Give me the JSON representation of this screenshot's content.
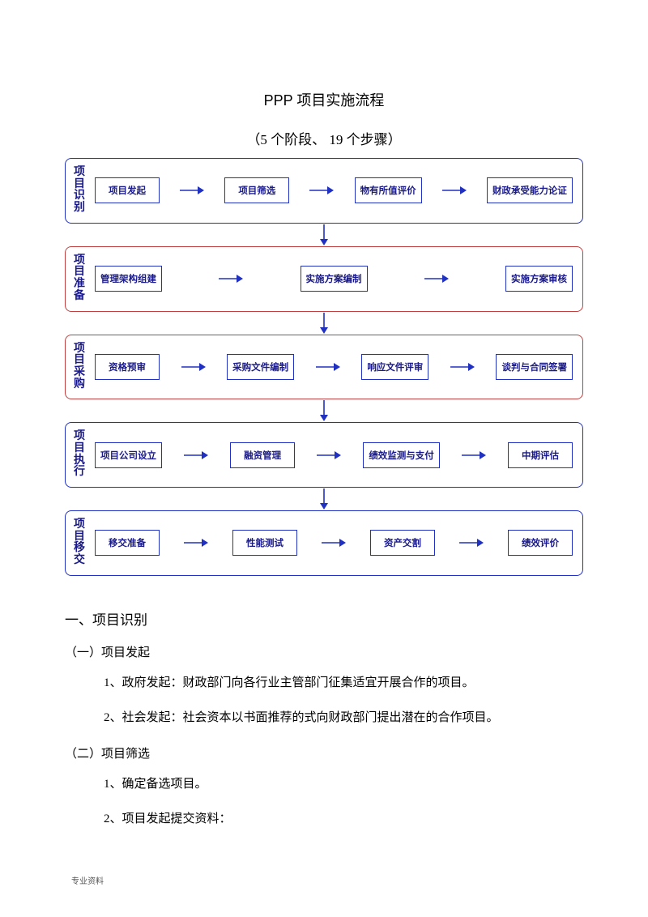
{
  "title": "PPP 项目实施流程",
  "subtitle": "（5 个阶段、 19 个步骤）",
  "diagram": {
    "arrow_color": "#2030c0",
    "box_border_color": "#2030c0",
    "box_text_color": "#1a1a8a",
    "stages": [
      {
        "label": "项目识别",
        "border_color": "#2030c0",
        "steps": [
          "项目发起",
          "项目筛选",
          "物有所值评价",
          "财政承受能力论证"
        ]
      },
      {
        "label": "项目准备",
        "border_color": "#c04040",
        "steps": [
          "管理架构组建",
          "实施方案编制",
          "实施方案审核"
        ]
      },
      {
        "label": "项目采购",
        "border_color": "#c04040",
        "steps": [
          "资格预审",
          "采购文件编制",
          "响应文件评审",
          "谈判与合同签署"
        ]
      },
      {
        "label": "项目执行",
        "border_color": "#2030c0",
        "steps": [
          "项目公司设立",
          "融资管理",
          "绩效监测与支付",
          "中期评估"
        ]
      },
      {
        "label": "项目移交",
        "border_color": "#2030c0",
        "steps": [
          "移交准备",
          "性能测试",
          "资产交割",
          "绩效评价"
        ]
      }
    ]
  },
  "body": {
    "section_heading": "一、项目识别",
    "sub1_heading": "（一）项目发起",
    "sub1_p1": "1、政府发起：财政部门向各行业主管部门征集适宜开展合作的项目。",
    "sub1_p2": "2、社会发起：社会资本以书面推荐的式向财政部门提出潜在的合作项目。",
    "sub2_heading": "（二）项目筛选",
    "sub2_p1": "1、确定备选项目。",
    "sub2_p2": "2、项目发起提交资料："
  },
  "footer": "专业资料"
}
